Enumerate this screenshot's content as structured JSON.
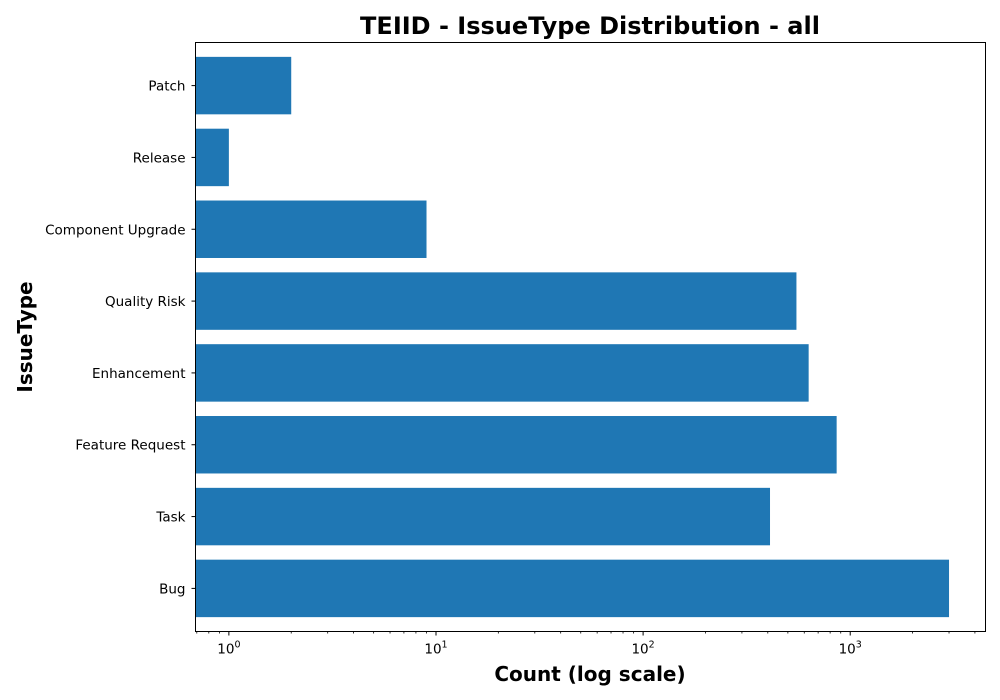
{
  "chart_data": {
    "type": "bar",
    "orientation": "horizontal",
    "title": "TEIID - IssueType Distribution - all",
    "xlabel": "Count (log scale)",
    "ylabel": "IssueType",
    "xscale": "log",
    "xlim": [
      0.69,
      4500
    ],
    "x_ticks": [
      {
        "base": "10",
        "exp": "0",
        "value": 1
      },
      {
        "base": "10",
        "exp": "1",
        "value": 10
      },
      {
        "base": "10",
        "exp": "2",
        "value": 100
      },
      {
        "base": "10",
        "exp": "3",
        "value": 1000
      }
    ],
    "categories": [
      "Bug",
      "Task",
      "Feature Request",
      "Enhancement",
      "Quality Risk",
      "Component Upgrade",
      "Release",
      "Patch"
    ],
    "values": [
      3000,
      410,
      860,
      630,
      550,
      9,
      1,
      2
    ],
    "bar_color": "#1f77b4",
    "grid": false,
    "legend": "none"
  }
}
